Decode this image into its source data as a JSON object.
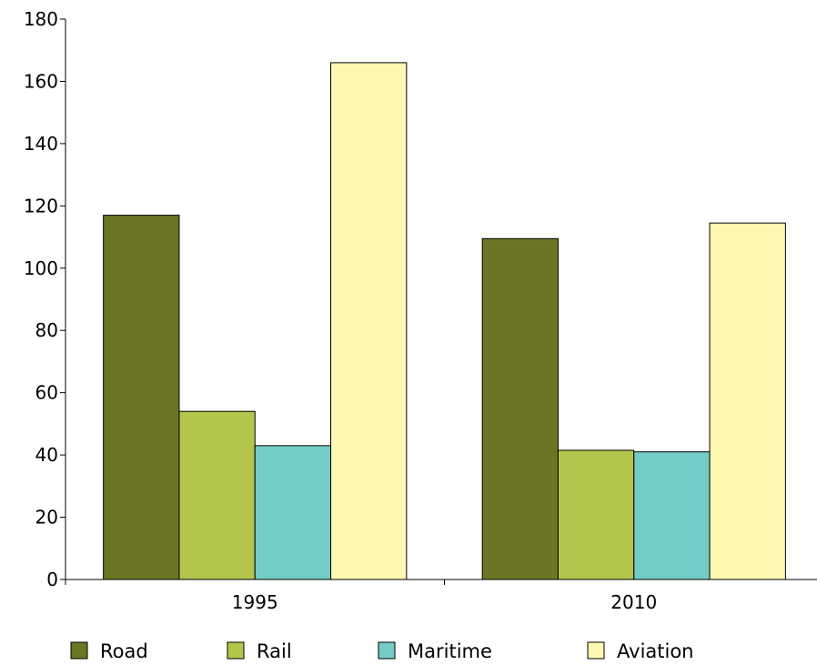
{
  "chart_data": {
    "type": "bar",
    "categories": [
      "1995",
      "2010"
    ],
    "series": [
      {
        "name": "Road",
        "values": [
          117,
          109.5
        ],
        "color": "#6b7523"
      },
      {
        "name": "Rail",
        "values": [
          54,
          41.5
        ],
        "color": "#b3c64b"
      },
      {
        "name": "Maritime",
        "values": [
          43,
          41
        ],
        "color": "#74ccc6"
      },
      {
        "name": "Aviation",
        "values": [
          166,
          114.5
        ],
        "color": "#fff8b3"
      }
    ],
    "ylim": [
      0,
      180
    ],
    "yticks": [
      0,
      20,
      40,
      60,
      80,
      100,
      120,
      140,
      160,
      180
    ],
    "grid": false,
    "legend": "bottom",
    "title": "",
    "xlabel": "",
    "ylabel": ""
  }
}
